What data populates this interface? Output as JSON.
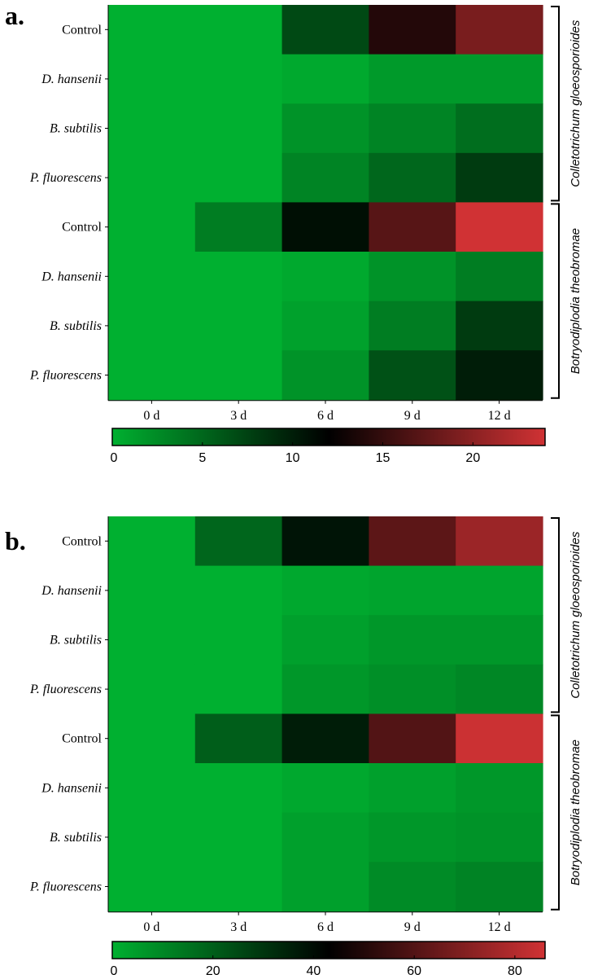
{
  "chart_data": [
    {
      "type": "heatmap",
      "panel_label": "a.",
      "columns": [
        "0 d",
        "3 d",
        "6 d",
        "9 d",
        "12 d"
      ],
      "rows": [
        {
          "label": "Control",
          "italic": false
        },
        {
          "label": "D. hansenii",
          "italic": true
        },
        {
          "label": "B. subtilis",
          "italic": true
        },
        {
          "label": "P. fluorescens",
          "italic": true
        },
        {
          "label": "Control",
          "italic": false
        },
        {
          "label": "D. hansenii",
          "italic": true
        },
        {
          "label": "B. subtilis",
          "italic": true
        },
        {
          "label": "P. fluorescens",
          "italic": true
        }
      ],
      "values": [
        [
          0,
          0,
          7,
          14,
          19
        ],
        [
          0,
          0,
          0.5,
          1.5,
          1.5
        ],
        [
          0,
          0,
          2,
          3,
          4.5
        ],
        [
          0,
          0,
          3,
          5,
          8
        ],
        [
          0,
          3.5,
          11,
          17,
          24
        ],
        [
          0,
          0,
          0.5,
          2,
          3.5
        ],
        [
          0,
          0,
          1,
          3.5,
          8
        ],
        [
          0,
          0,
          2,
          6.5,
          10
        ]
      ],
      "groups": [
        {
          "label": "Colletotrichum gloeosporioides",
          "row_start": 0,
          "row_end": 3
        },
        {
          "label": "Botryodiplodia theobromae",
          "row_start": 4,
          "row_end": 7
        }
      ],
      "colorbar": {
        "min": 0,
        "max": 24,
        "ticks": [
          0,
          5,
          10,
          15,
          20
        ]
      },
      "colors": {
        "low": "#00b030",
        "mid": "#000000",
        "high": "#d03234"
      }
    },
    {
      "type": "heatmap",
      "panel_label": "b.",
      "columns": [
        "0 d",
        "3 d",
        "6 d",
        "9 d",
        "12 d"
      ],
      "rows": [
        {
          "label": "Control",
          "italic": false
        },
        {
          "label": "D. hansenii",
          "italic": true
        },
        {
          "label": "B. subtilis",
          "italic": true
        },
        {
          "label": "P. fluorescens",
          "italic": true
        },
        {
          "label": "Control",
          "italic": false
        },
        {
          "label": "D. hansenii",
          "italic": true
        },
        {
          "label": "B. subtilis",
          "italic": true
        },
        {
          "label": "P. fluorescens",
          "italic": true
        }
      ],
      "values": [
        [
          0,
          18,
          38,
          62,
          75
        ],
        [
          0,
          0,
          2,
          3,
          3
        ],
        [
          0,
          0,
          4,
          6,
          6
        ],
        [
          0,
          0,
          6,
          8,
          10
        ],
        [
          0,
          20,
          36,
          60,
          85
        ],
        [
          0,
          0,
          2,
          4,
          6
        ],
        [
          0,
          0,
          4,
          6,
          7
        ],
        [
          0,
          0,
          4,
          9,
          11
        ]
      ],
      "groups": [
        {
          "label": "Colletotrichum gloeosporioides",
          "row_start": 0,
          "row_end": 3
        },
        {
          "label": "Botryodiplodia theobromae",
          "row_start": 4,
          "row_end": 7
        }
      ],
      "colorbar": {
        "min": 0,
        "max": 86,
        "ticks": [
          0,
          20,
          40,
          60,
          80
        ]
      },
      "colors": {
        "low": "#00b030",
        "mid": "#000000",
        "high": "#d03234"
      }
    }
  ]
}
